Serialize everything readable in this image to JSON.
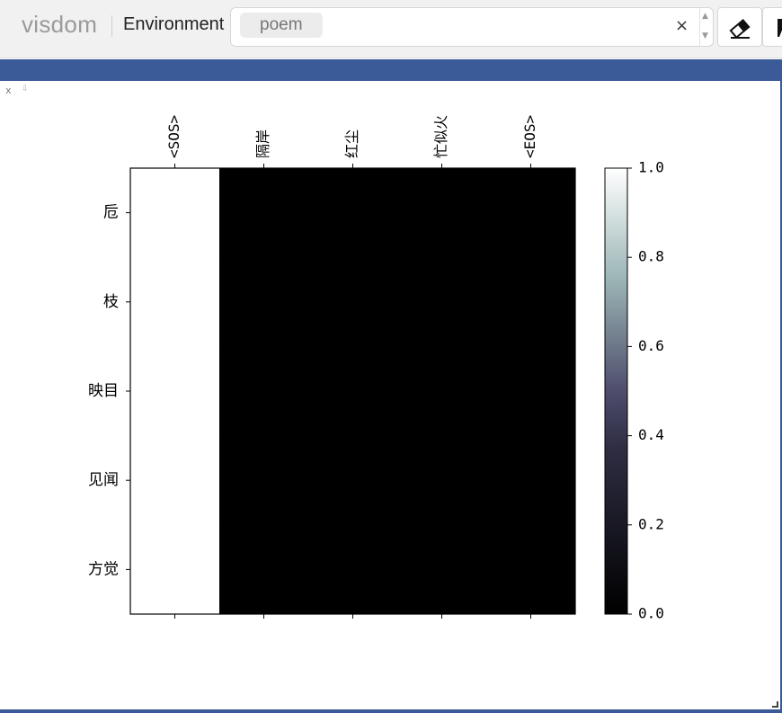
{
  "app": {
    "brand": "visdom"
  },
  "toolbar": {
    "env_label": "Environment",
    "env_selected": "poem",
    "clear_symbol": "×",
    "eraser_icon": "eraser-icon"
  },
  "pane": {
    "close_symbol": "x",
    "download_symbol": "⇩"
  },
  "chart_data": {
    "type": "heatmap",
    "x_labels": [
      "<SOS>",
      "隔岸",
      "红尘",
      "忙似火",
      "<EOS>"
    ],
    "y_labels": [
      "卮",
      "枝",
      "映目",
      "见闻",
      "方觉"
    ],
    "values": [
      [
        1,
        0,
        0,
        0,
        0
      ],
      [
        1,
        0,
        0,
        0,
        0
      ],
      [
        1,
        0,
        0,
        0,
        0
      ],
      [
        1,
        0,
        0,
        0,
        0
      ],
      [
        1,
        0,
        0,
        0,
        0
      ]
    ],
    "colorbar_range": [
      0.0,
      1.0
    ],
    "colorbar_ticks": [
      "0.0",
      "0.2",
      "0.4",
      "0.6",
      "0.8",
      "1.0"
    ],
    "colormap": "bone",
    "title": "",
    "xlabel": "",
    "ylabel": ""
  }
}
